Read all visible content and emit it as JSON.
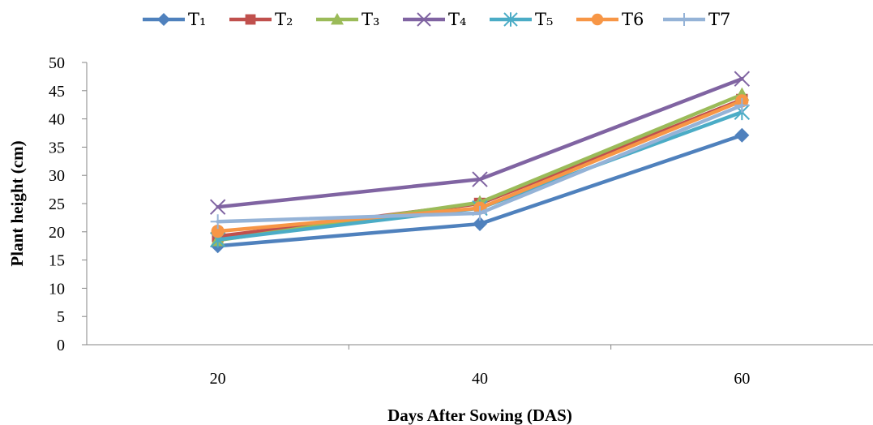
{
  "chart_data": {
    "type": "line",
    "title": "",
    "xlabel": "Days After Sowing (DAS)",
    "ylabel": "Plant height (cm)",
    "categories": [
      "20",
      "40",
      "60"
    ],
    "ylim": [
      0,
      50
    ],
    "y_ticks": [
      0,
      5,
      10,
      15,
      20,
      25,
      30,
      35,
      40,
      45,
      50
    ],
    "grid": false,
    "legend_position": "top",
    "series": [
      {
        "name": "T1",
        "label": "T₁",
        "color": "#4F81BD",
        "marker": "diamond",
        "values": [
          17.5,
          21.4,
          37.1
        ]
      },
      {
        "name": "T2",
        "label": "T₂",
        "color": "#C0504D",
        "marker": "square",
        "values": [
          19.2,
          25.0,
          43.4
        ]
      },
      {
        "name": "T3",
        "label": "T₃",
        "color": "#9BBB59",
        "marker": "triangle",
        "values": [
          18.5,
          25.2,
          44.3
        ]
      },
      {
        "name": "T4",
        "label": "T₄",
        "color": "#8064A2",
        "marker": "x",
        "values": [
          24.4,
          29.3,
          47.1
        ]
      },
      {
        "name": "T5",
        "label": "T₅",
        "color": "#4BACC6",
        "marker": "star",
        "values": [
          18.6,
          24.2,
          41.2
        ]
      },
      {
        "name": "T6",
        "label": "T6",
        "color": "#F79646",
        "marker": "circle",
        "values": [
          20.1,
          24.2,
          43.2
        ]
      },
      {
        "name": "T7",
        "label": "T7",
        "color": "#95B3D7",
        "marker": "plus",
        "values": [
          21.8,
          23.3,
          42.4
        ]
      }
    ]
  }
}
